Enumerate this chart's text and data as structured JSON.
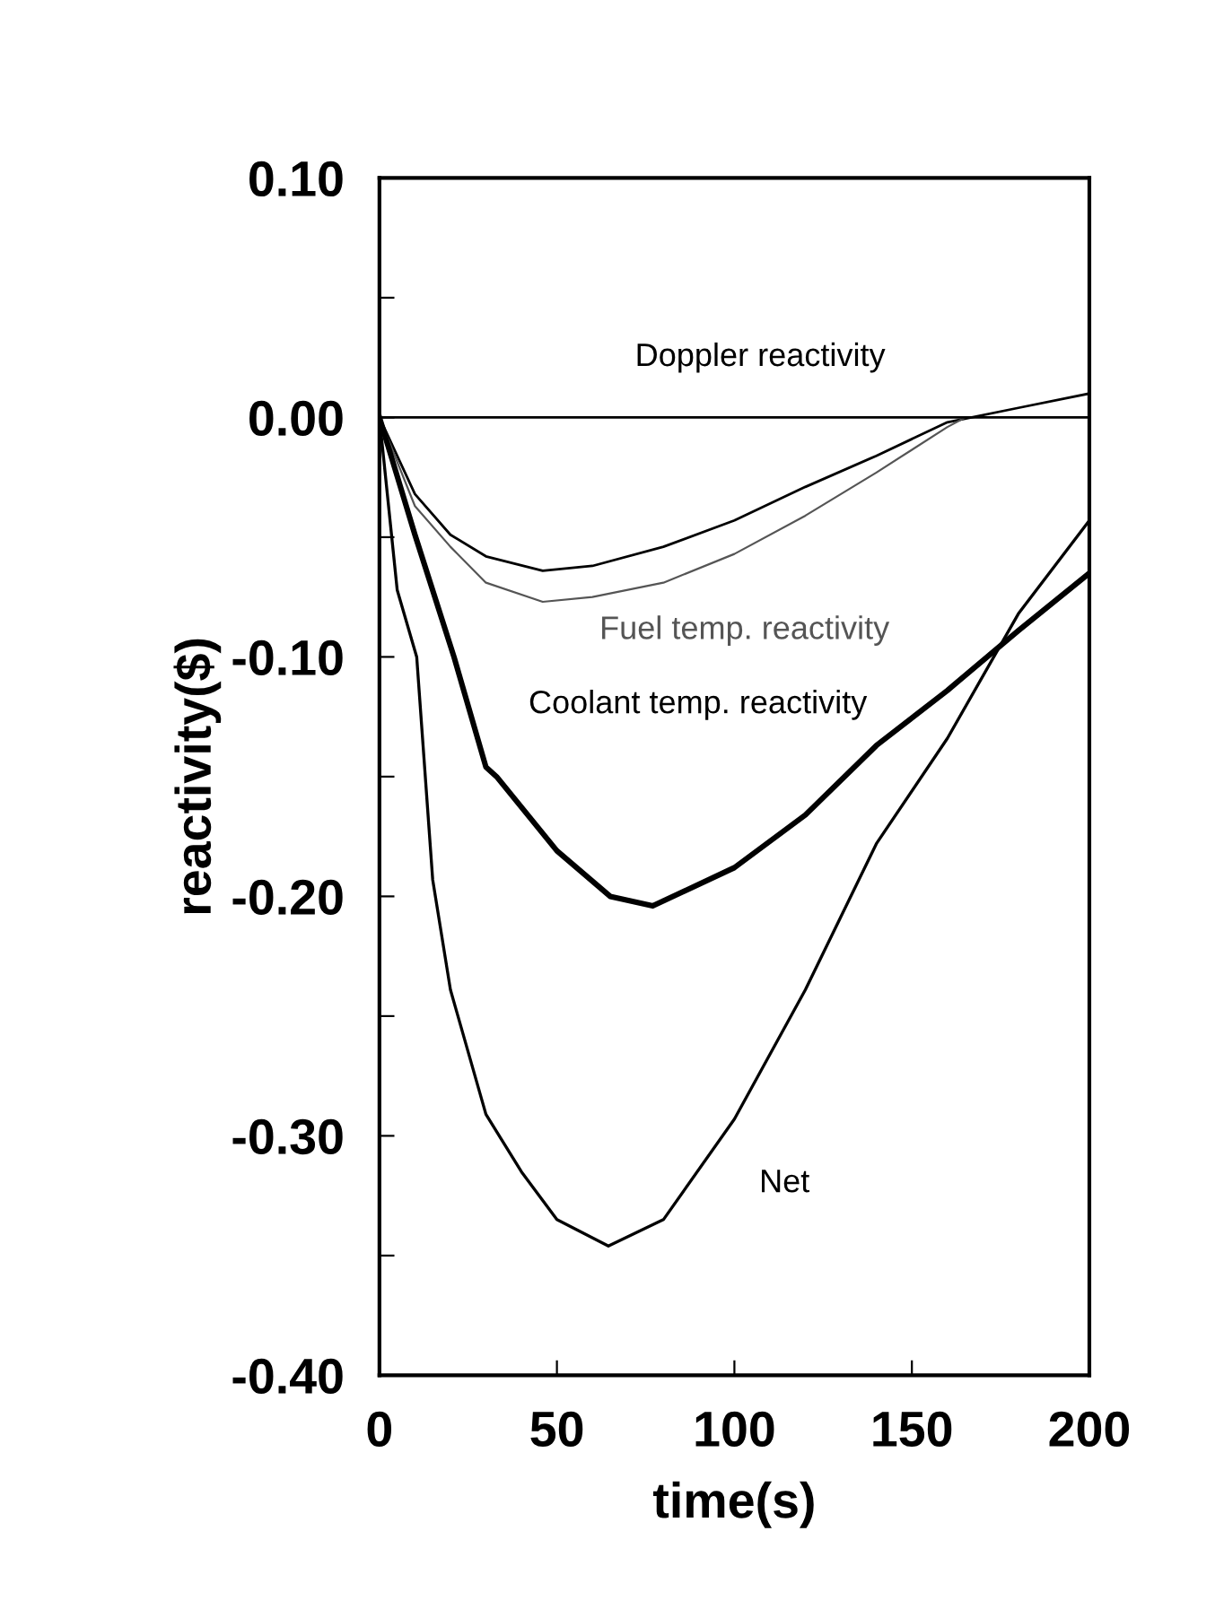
{
  "chart_data": {
    "type": "line",
    "xlabel": "time(s)",
    "ylabel": "reactivity($)",
    "xlim": [
      0,
      200
    ],
    "ylim": [
      -0.4,
      0.1
    ],
    "xticks": [
      0,
      50,
      100,
      150,
      200
    ],
    "yticks": [
      {
        "value": 0.1,
        "label": "0.10"
      },
      {
        "value": 0.05,
        "label": null
      },
      {
        "value": 0.0,
        "label": "0.00"
      },
      {
        "value": -0.05,
        "label": null
      },
      {
        "value": -0.1,
        "label": "-0.10"
      },
      {
        "value": -0.15,
        "label": null
      },
      {
        "value": -0.2,
        "label": "-0.20"
      },
      {
        "value": -0.25,
        "label": null
      },
      {
        "value": -0.3,
        "label": "-0.30"
      },
      {
        "value": -0.35,
        "label": null
      },
      {
        "value": -0.4,
        "label": "-0.40"
      }
    ],
    "grid": false,
    "legend": false,
    "marker": "none",
    "line_style": "solid",
    "ref_lines": [
      {
        "axis": "y",
        "value": 0,
        "color": "#000000"
      }
    ],
    "series": [
      {
        "name": "Doppler reactivity",
        "color": "#000000",
        "x": [
          0,
          10,
          20,
          30,
          46,
          60,
          80,
          100,
          120,
          140,
          160,
          180,
          200
        ],
        "values": [
          0,
          -0.032,
          -0.049,
          -0.058,
          -0.064,
          -0.062,
          -0.054,
          -0.043,
          -0.029,
          -0.016,
          -0.002,
          0.004,
          0.01
        ]
      },
      {
        "name": "Fuel temp. reactivity",
        "color": "#555555",
        "x": [
          0,
          10,
          20,
          30,
          46,
          60,
          80,
          100,
          120,
          140,
          160,
          165
        ],
        "values": [
          0,
          -0.037,
          -0.054,
          -0.069,
          -0.077,
          -0.075,
          -0.069,
          -0.057,
          -0.041,
          -0.023,
          -0.004,
          0
        ]
      },
      {
        "name": "Coolant temp. reactivity",
        "color": "#000000",
        "x": [
          0,
          10,
          21,
          30,
          33,
          50,
          65,
          77,
          100,
          120,
          140,
          160,
          180,
          200
        ],
        "values": [
          0,
          -0.049,
          -0.1,
          -0.146,
          -0.15,
          -0.181,
          -0.2,
          -0.204,
          -0.188,
          -0.166,
          -0.137,
          -0.114,
          -0.089,
          -0.065
        ]
      },
      {
        "name": "Net",
        "color": "#000000",
        "x": [
          0,
          5,
          10.5,
          15,
          20,
          30,
          40,
          50,
          64.5,
          80,
          100,
          120,
          140,
          160,
          180,
          200
        ],
        "values": [
          0,
          -0.072,
          -0.1,
          -0.193,
          -0.239,
          -0.291,
          -0.315,
          -0.335,
          -0.346,
          -0.335,
          -0.293,
          -0.239,
          -0.178,
          -0.134,
          -0.082,
          -0.043
        ]
      }
    ]
  }
}
